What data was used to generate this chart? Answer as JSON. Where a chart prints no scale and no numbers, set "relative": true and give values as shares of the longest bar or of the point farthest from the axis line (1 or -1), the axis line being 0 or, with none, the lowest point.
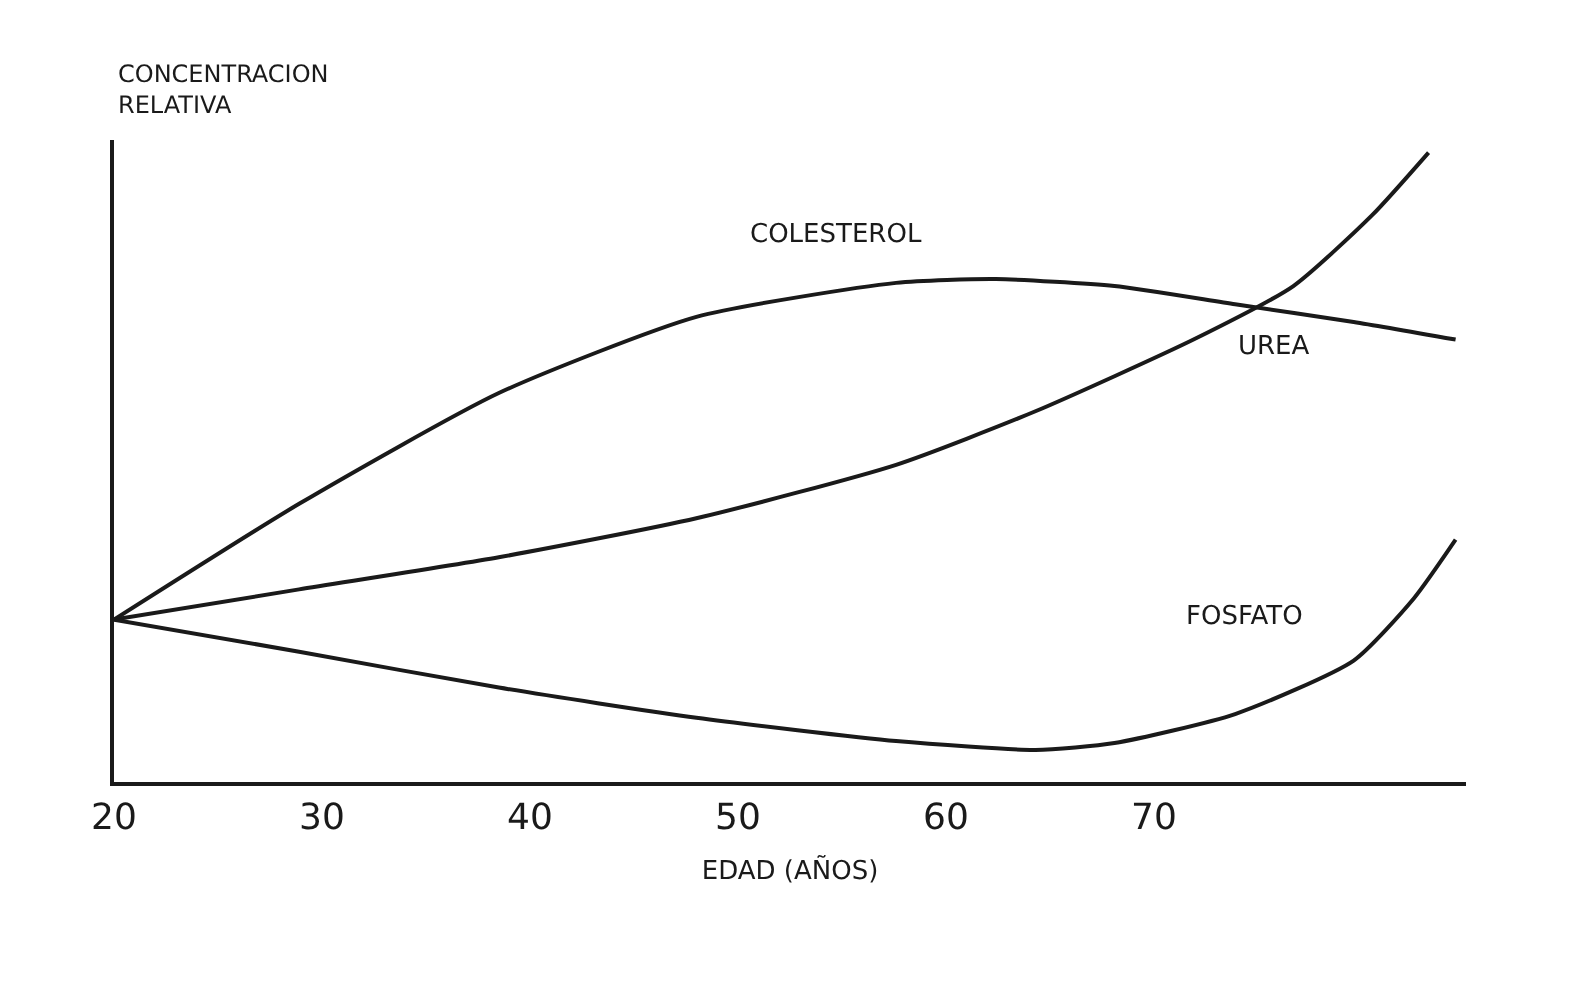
{
  "chart_data": {
    "type": "line",
    "ylabel": "CONCENTRACION\nRELATIVA",
    "xlabel": "EDAD (AÑOS)",
    "relative": true,
    "xlim": [
      20,
      85
    ],
    "xticks": [
      20,
      30,
      40,
      50,
      60,
      70
    ],
    "grid": false,
    "legend": false,
    "marker": "none",
    "line_style": "solid",
    "series": [
      {
        "name": "COLESTEROL",
        "color": "#1a1a1a",
        "x": [
          20,
          28.9,
          38.5,
          48.0,
          57.6,
          62.4,
          68.1,
          73.9,
          79.6,
          84.5
        ],
        "values": [
          0.258,
          0.442,
          0.618,
          0.739,
          0.793,
          0.799,
          0.788,
          0.759,
          0.731,
          0.703
        ]
      },
      {
        "name": "UREA",
        "color": "#1a1a1a",
        "x": [
          20,
          28.9,
          38.5,
          48.0,
          57.6,
          64.3,
          71.9,
          76.7,
          80.5,
          83.2
        ],
        "values": [
          0.258,
          0.306,
          0.357,
          0.419,
          0.504,
          0.589,
          0.703,
          0.788,
          0.901,
          1
        ]
      },
      {
        "name": "FOSFATO",
        "color": "#1a1a1a",
        "x": [
          20,
          28.9,
          38.5,
          48.0,
          57.6,
          64.3,
          68.1,
          73.9,
          79.6,
          82.5,
          84.5
        ],
        "values": [
          0.258,
          0.207,
          0.15,
          0.102,
          0.065,
          0.051,
          0.062,
          0.108,
          0.193,
          0.292,
          0.385
        ]
      }
    ]
  }
}
